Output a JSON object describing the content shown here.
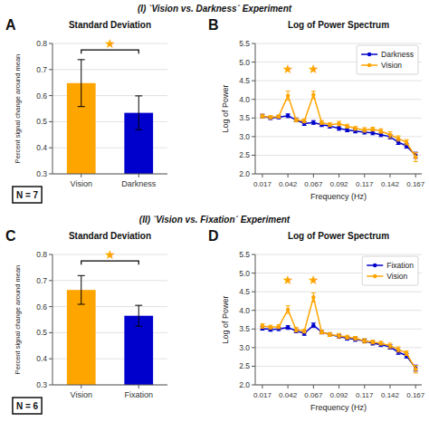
{
  "chart_data": [
    {
      "type": "bar",
      "title": "Standard Deviation",
      "categories": [
        "Vision",
        "Darkness"
      ],
      "values": [
        0.648,
        0.534
      ],
      "errors": [
        0.09,
        0.065
      ],
      "colors": [
        "#FFA500",
        "#0000CD"
      ],
      "ylabel": "Percent signal change around mean",
      "ylim": [
        0.3,
        0.8
      ],
      "yticks": [
        0.3,
        0.4,
        0.5,
        0.6,
        0.7,
        0.8
      ],
      "grid": true,
      "annotations": [
        {
          "kind": "section-title",
          "text": "(I) `Vision vs. Darkness´ Experiment"
        },
        {
          "kind": "panel-label",
          "text": "A"
        },
        {
          "kind": "n-label",
          "text": "N = 7"
        },
        {
          "kind": "significance",
          "text": "★",
          "y": 0.775,
          "color": "#FFA500"
        }
      ]
    },
    {
      "type": "line",
      "title": "Log of Power Spectrum",
      "x": [
        0.017,
        0.025,
        0.033,
        0.042,
        0.05,
        0.058,
        0.067,
        0.075,
        0.083,
        0.092,
        0.1,
        0.108,
        0.117,
        0.125,
        0.133,
        0.142,
        0.15,
        0.158,
        0.167
      ],
      "series": [
        {
          "name": "Darkness",
          "color": "#0000CD",
          "marker": "circle",
          "values": [
            3.55,
            3.5,
            3.52,
            3.56,
            3.45,
            3.35,
            3.38,
            3.32,
            3.28,
            3.22,
            3.18,
            3.15,
            3.12,
            3.1,
            3.05,
            3.0,
            2.85,
            2.75,
            2.5
          ],
          "errors": [
            0.05,
            0.04,
            0.04,
            0.05,
            0.05,
            0.05,
            0.05,
            0.05,
            0.05,
            0.05,
            0.05,
            0.05,
            0.05,
            0.05,
            0.05,
            0.06,
            0.06,
            0.06,
            0.08
          ]
        },
        {
          "name": "Vision",
          "color": "#FFA500",
          "marker": "circle",
          "values": [
            3.55,
            3.52,
            3.54,
            4.1,
            3.45,
            3.42,
            4.12,
            3.38,
            3.32,
            3.35,
            3.28,
            3.22,
            3.18,
            3.2,
            3.15,
            3.05,
            2.95,
            2.85,
            2.45
          ],
          "errors": [
            0.05,
            0.04,
            0.04,
            0.12,
            0.05,
            0.05,
            0.1,
            0.05,
            0.05,
            0.06,
            0.05,
            0.05,
            0.06,
            0.05,
            0.06,
            0.08,
            0.07,
            0.07,
            0.12
          ]
        }
      ],
      "xlabel": "Frequency (Hz)",
      "ylabel": "Log of Power",
      "xlim": [
        0.01,
        0.173
      ],
      "xticks": [
        0.017,
        0.042,
        0.067,
        0.092,
        0.117,
        0.142,
        0.167
      ],
      "ylim": [
        2.0,
        5.5
      ],
      "yticks": [
        {
          "value": 2.0,
          "label": "2.0"
        },
        2.5,
        {
          "value": 3.0,
          "label": "3.0"
        },
        3.5,
        {
          "value": 4.0,
          "label": "4.0"
        },
        4.5,
        {
          "value": 5.0,
          "label": "5.0"
        },
        5.5
      ],
      "grid": true,
      "legend": "upper right",
      "annotations": [
        {
          "kind": "panel-label",
          "text": "B"
        },
        {
          "kind": "star",
          "text": "★",
          "x": 0.042,
          "y": 4.82,
          "color": "#FFA500"
        },
        {
          "kind": "star",
          "text": "★",
          "x": 0.067,
          "y": 4.82,
          "color": "#FFA500"
        }
      ]
    },
    {
      "type": "bar",
      "title": "Standard Deviation",
      "categories": [
        "Vision",
        "Fixation"
      ],
      "values": [
        0.664,
        0.565
      ],
      "errors": [
        0.055,
        0.04
      ],
      "colors": [
        "#FFA500",
        "#0000CD"
      ],
      "ylabel": "Percent signal change around mean",
      "ylim": [
        0.3,
        0.8
      ],
      "yticks": [
        0.3,
        0.4,
        0.5,
        0.6,
        0.7,
        0.8
      ],
      "grid": true,
      "annotations": [
        {
          "kind": "section-title",
          "text": "(II) `Vision vs. Fixation´ Experiment"
        },
        {
          "kind": "panel-label",
          "text": "C"
        },
        {
          "kind": "n-label",
          "text": "N = 6"
        },
        {
          "kind": "significance",
          "text": "★",
          "y": 0.775,
          "color": "#FFA500"
        }
      ]
    },
    {
      "type": "line",
      "title": "Log of Power Spectrum",
      "x": [
        0.017,
        0.025,
        0.033,
        0.042,
        0.05,
        0.058,
        0.067,
        0.075,
        0.083,
        0.092,
        0.1,
        0.108,
        0.117,
        0.125,
        0.133,
        0.142,
        0.15,
        0.158,
        0.167
      ],
      "series": [
        {
          "name": "Fixation",
          "color": "#0000CD",
          "marker": "circle",
          "values": [
            3.52,
            3.48,
            3.5,
            3.54,
            3.45,
            3.38,
            3.6,
            3.42,
            3.35,
            3.3,
            3.25,
            3.22,
            3.18,
            3.12,
            3.08,
            3.02,
            2.88,
            2.78,
            2.45
          ],
          "errors": [
            0.05,
            0.04,
            0.04,
            0.05,
            0.05,
            0.05,
            0.06,
            0.05,
            0.05,
            0.05,
            0.05,
            0.05,
            0.05,
            0.05,
            0.05,
            0.06,
            0.06,
            0.06,
            0.08
          ]
        },
        {
          "name": "Vision",
          "color": "#FFA500",
          "marker": "circle",
          "values": [
            3.58,
            3.55,
            3.56,
            4.02,
            3.48,
            3.44,
            4.35,
            3.42,
            3.35,
            3.32,
            3.28,
            3.25,
            3.18,
            3.15,
            3.12,
            3.05,
            2.95,
            2.85,
            2.42
          ],
          "errors": [
            0.06,
            0.05,
            0.05,
            0.1,
            0.06,
            0.05,
            0.12,
            0.05,
            0.05,
            0.06,
            0.05,
            0.05,
            0.06,
            0.05,
            0.05,
            0.07,
            0.07,
            0.06,
            0.1
          ]
        }
      ],
      "xlabel": "Frequency (Hz)",
      "ylabel": "Log of Power",
      "xlim": [
        0.01,
        0.173
      ],
      "xticks": [
        0.017,
        0.042,
        0.067,
        0.092,
        0.117,
        0.142,
        0.167
      ],
      "ylim": [
        2.0,
        5.5
      ],
      "yticks": [
        {
          "value": 2.0,
          "label": "2.0"
        },
        2.5,
        {
          "value": 3.0,
          "label": "3.0"
        },
        3.5,
        {
          "value": 4.0,
          "label": "4.0"
        },
        4.5,
        {
          "value": 5.0,
          "label": "5.0"
        },
        5.5
      ],
      "grid": true,
      "legend": "upper right",
      "annotations": [
        {
          "kind": "panel-label",
          "text": "D"
        },
        {
          "kind": "star",
          "text": "★",
          "x": 0.042,
          "y": 4.82,
          "color": "#FFA500"
        },
        {
          "kind": "star",
          "text": "★",
          "x": 0.067,
          "y": 4.82,
          "color": "#FFA500"
        }
      ]
    }
  ]
}
